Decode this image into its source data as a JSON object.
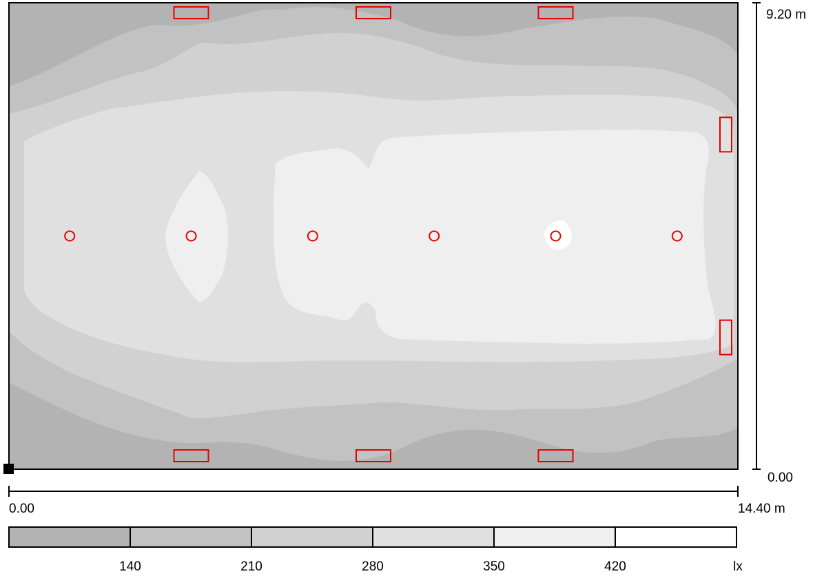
{
  "plan": {
    "width_m": 14.4,
    "depth_m": 9.2,
    "x_axis": {
      "start_label": "0.00",
      "end_label": "14.40 m"
    },
    "y_axis": {
      "start_label": "0.00",
      "end_label": "9.20 m"
    },
    "luminaire_color": "#e60000",
    "downlights_m": [
      {
        "x": 1.2,
        "y": 4.6
      },
      {
        "x": 3.6,
        "y": 4.6
      },
      {
        "x": 6.0,
        "y": 4.6
      },
      {
        "x": 8.4,
        "y": 4.6
      },
      {
        "x": 10.8,
        "y": 4.6
      },
      {
        "x": 13.2,
        "y": 4.6
      }
    ],
    "wall_luminaires_top": [
      3.6,
      7.2,
      10.8
    ],
    "wall_luminaires_bottom": [
      3.6,
      7.2,
      10.8
    ],
    "wall_luminaires_right": [
      2.6,
      6.6
    ]
  },
  "legend": {
    "unit": "lx",
    "band_colors": [
      "#b3b3b3",
      "#c2c2c2",
      "#d1d1d1",
      "#e0e0e0",
      "#efefef",
      "#ffffff"
    ],
    "thresholds": [
      "140",
      "210",
      "280",
      "350",
      "420"
    ]
  }
}
